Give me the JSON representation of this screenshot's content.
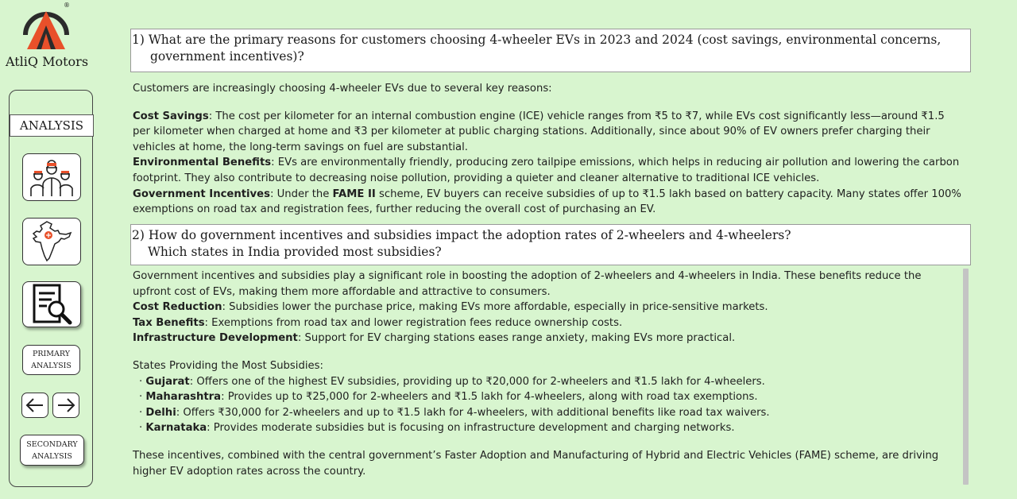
{
  "brand": {
    "name": "AtliQ Motors",
    "registered": "®"
  },
  "sidebar": {
    "section_label": "ANALYSIS",
    "icons": [
      "team-icon",
      "india-map-icon",
      "report-search-icon"
    ],
    "primary_button": {
      "line1": "PRIMARY",
      "line2": "ANALYSIS"
    },
    "secondary_button": {
      "line1": "SECONDARY",
      "line2": "ANALYSIS"
    },
    "nav": {
      "prev_icon": "arrow-left-icon",
      "next_icon": "arrow-right-icon"
    }
  },
  "q1": {
    "line1": "1) What are the primary reasons for customers choosing 4-wheeler EVs in 2023 and 2024 (cost savings, environmental concerns,",
    "line2": "government incentives)?"
  },
  "a1": {
    "intro": "Customers are increasingly choosing 4-wheeler EVs due to several key reasons:",
    "cost_label": "Cost Savings",
    "cost_text": ": The cost per kilometer for an internal combustion engine (ICE) vehicle ranges from ₹5 to ₹7, while EVs cost significantly less—around ₹1.5 per kilometer when charged at home and ₹3 per kilometer at public charging stations. Additionally, since about 90% of EV owners prefer charging their vehicles at home, the long-term savings on fuel are substantial.",
    "env_label": "Environmental Benefits",
    "env_text": ": EVs are environmentally friendly, producing zero tailpipe emissions, which helps in reducing air pollution and lowering the carbon footprint. They also contribute to decreasing noise pollution, providing a quieter and cleaner alternative to traditional ICE vehicles.",
    "gov_label": "Government Incentives",
    "gov_text_1": ": Under the ",
    "gov_scheme": "FAME II",
    "gov_text_2": " scheme, EV buyers can receive subsidies of up to ₹1.5 lakh based on battery capacity. Many states offer 100% exemptions on road tax and registration fees, further reducing the overall cost of purchasing an EV."
  },
  "q2": {
    "line1": "2) How do government incentives and subsidies impact the adoption rates of 2-wheelers and 4-wheelers?",
    "line2": "Which states in India provided most subsidies?"
  },
  "a2": {
    "intro": "Government incentives and subsidies play a significant role in boosting the adoption of 2-wheelers and 4-wheelers in India. These benefits reduce the upfront cost of EVs, making them more affordable and attractive to consumers.",
    "cost_label": "Cost Reduction",
    "cost_text": ": Subsidies lower the purchase price, making EVs more affordable, especially in price-sensitive markets.",
    "tax_label": "Tax Benefits",
    "tax_text": ": Exemptions from road tax and lower registration fees reduce ownership costs.",
    "infra_label": "Infrastructure Development",
    "infra_text": ": Support for EV charging stations eases range anxiety, making EVs more practical.",
    "states_heading": "States Providing the Most Subsidies:",
    "states": [
      {
        "name": "Gujarat",
        "text": ": Offers one of the highest EV subsidies, providing up to ₹20,000 for 2-wheelers and ₹1.5 lakh for 4-wheelers."
      },
      {
        "name": "Maharashtra",
        "text": ": Provides up to ₹25,000 for 2-wheelers and ₹1.5 lakh for 4-wheelers, along with road tax exemptions."
      },
      {
        "name": "Delhi",
        "text": ": Offers ₹30,000 for 2-wheelers and up to ₹1.5 lakh for 4-wheelers, with additional benefits like road tax waivers."
      },
      {
        "name": "Karnataka",
        "text": ": Provides moderate subsidies but is focusing on infrastructure development and charging networks."
      }
    ],
    "conclusion": "These incentives, combined with the central government’s Faster Adoption and Manufacturing of Hybrid and Electric Vehicles (FAME) scheme, are driving higher EV adoption rates across the country."
  },
  "colors": {
    "background": "#d8f5cf",
    "logo_orange": "#e8502a",
    "logo_dark": "#2b2b2b"
  }
}
